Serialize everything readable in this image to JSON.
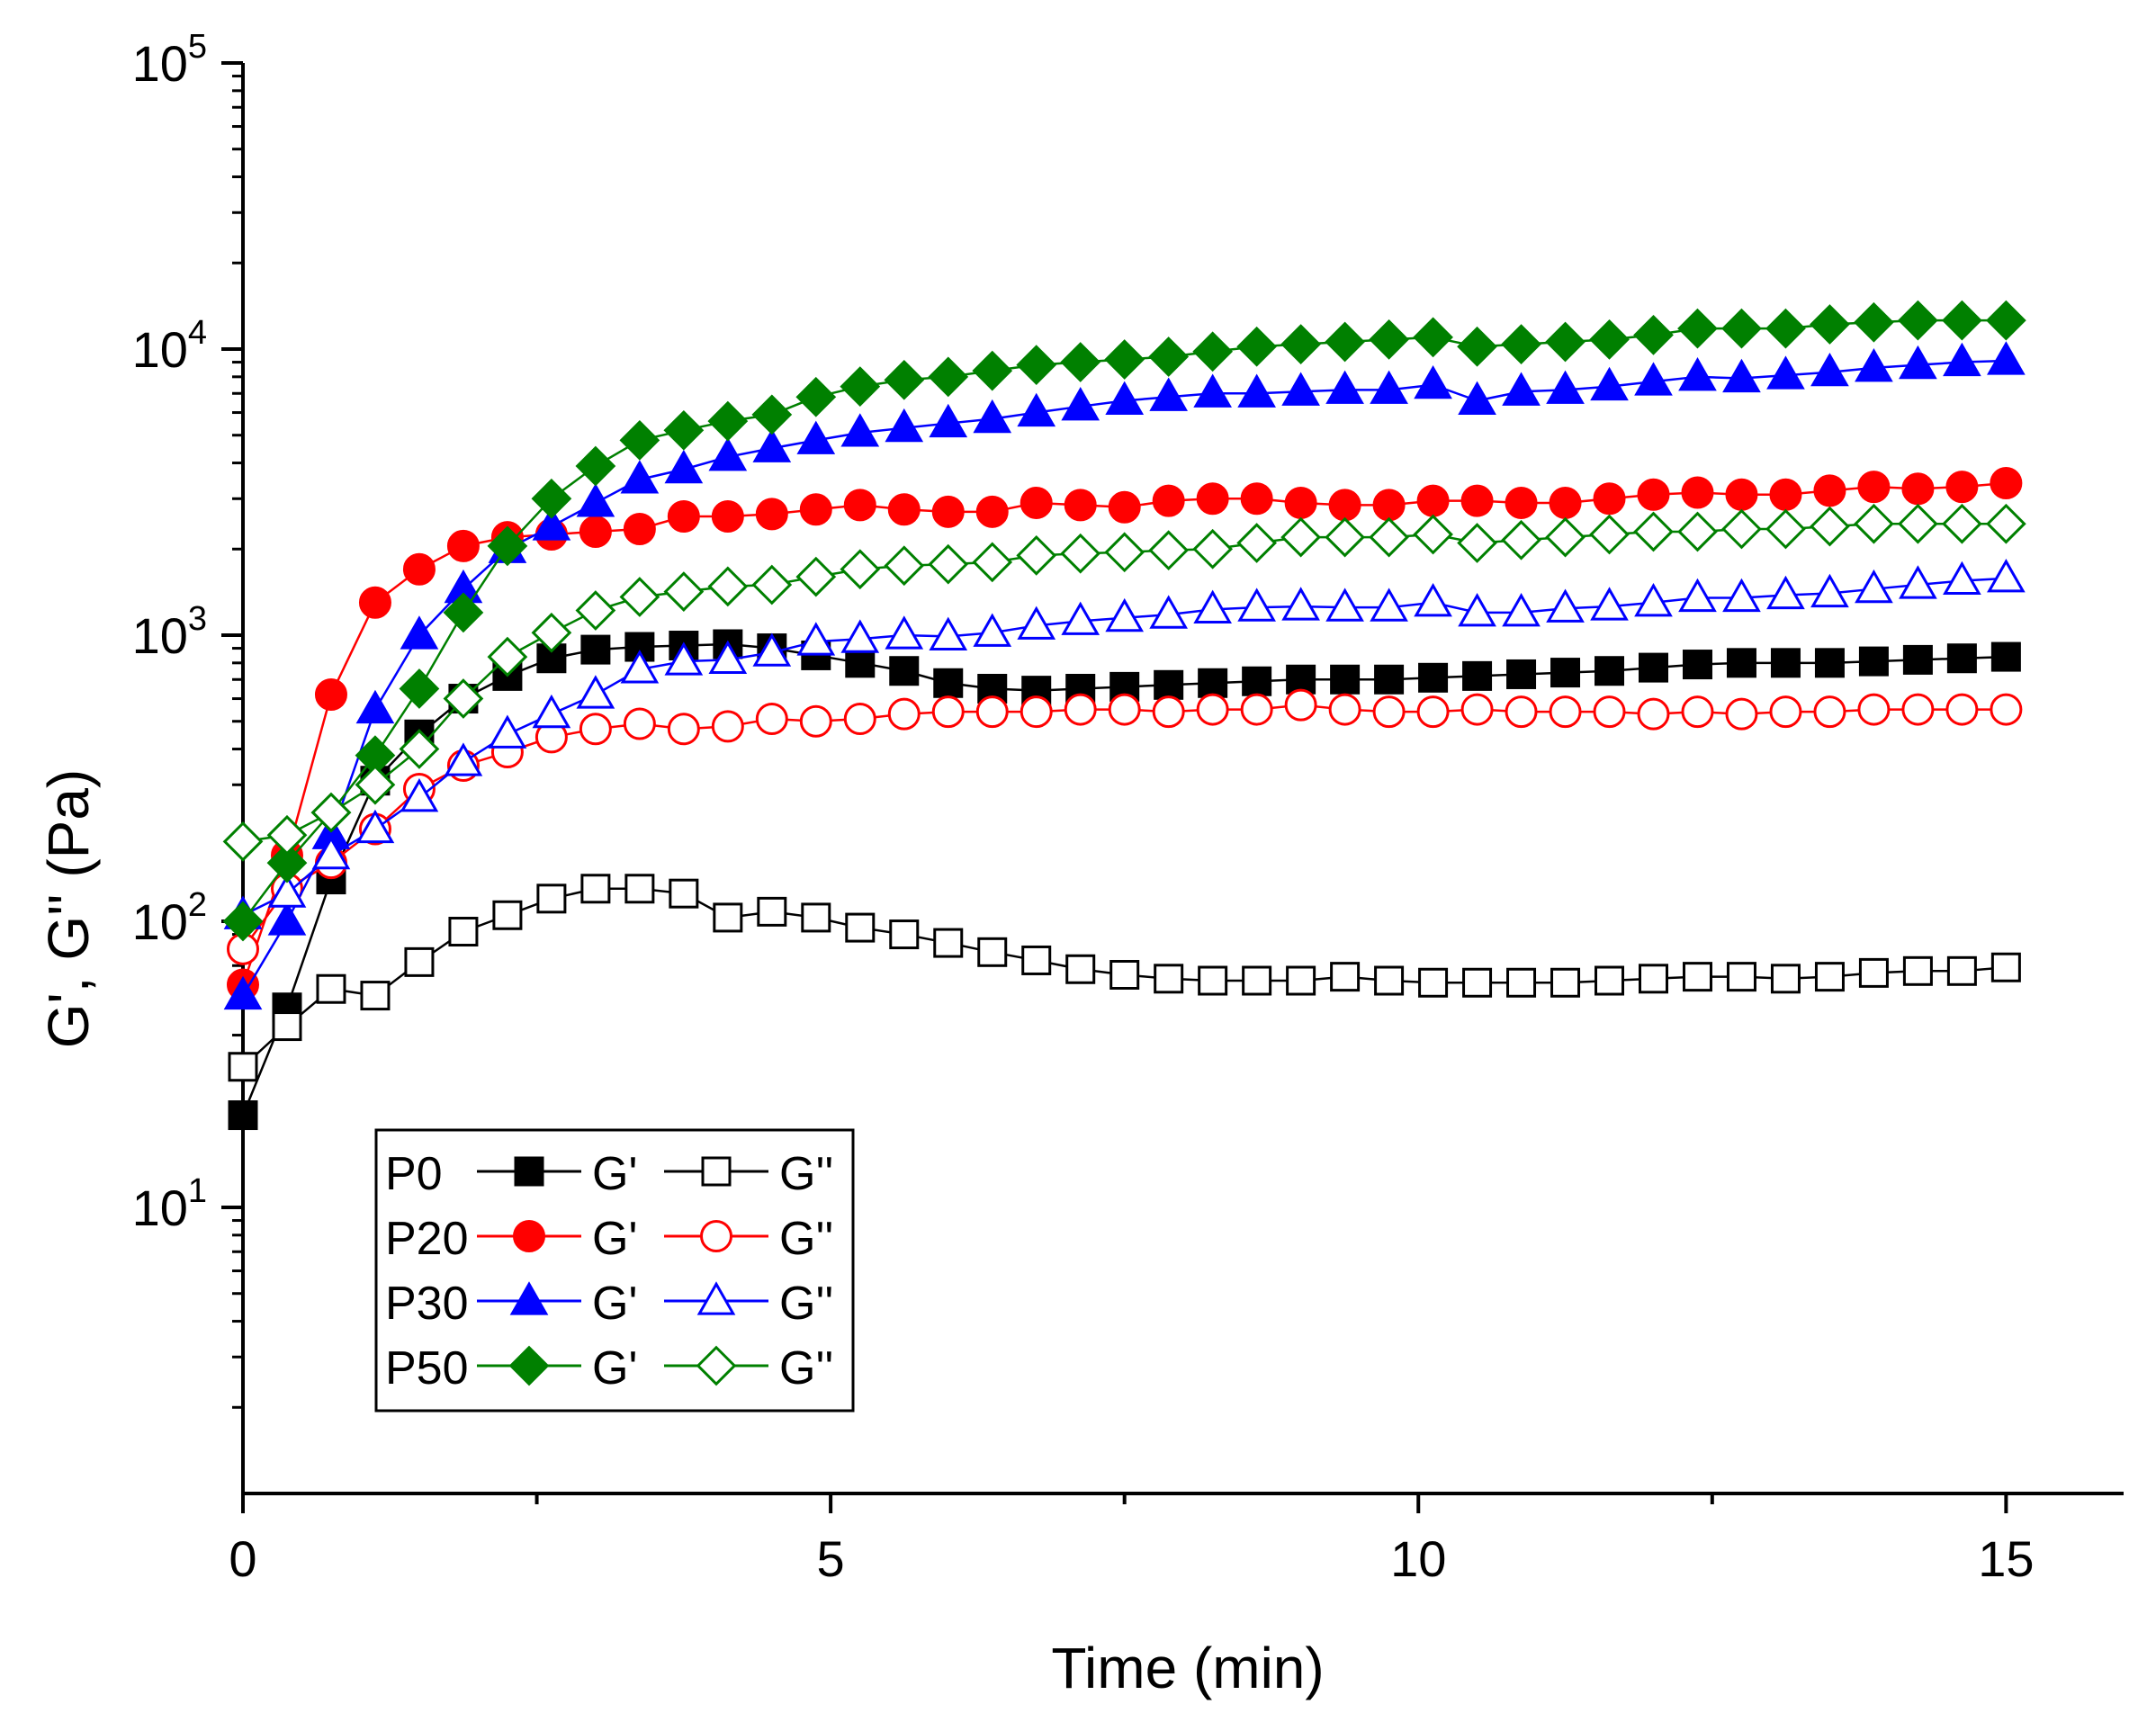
{
  "chart_data": {
    "type": "scatter",
    "title": "",
    "xlabel": "Time (min)",
    "ylabel": "G', G'' (Pa)",
    "xlim": [
      0,
      16
    ],
    "ylim": [
      1,
      100000
    ],
    "yscale": "log",
    "x_ticks": [
      {
        "value": 0,
        "label": "0"
      },
      {
        "value": 5,
        "label": "5"
      },
      {
        "value": 10,
        "label": "10"
      },
      {
        "value": 15,
        "label": "15"
      }
    ],
    "y_ticks": [
      {
        "value": 10,
        "base": "10",
        "exp": "1"
      },
      {
        "value": 100,
        "base": "10",
        "exp": "2"
      },
      {
        "value": 1000,
        "base": "10",
        "exp": "3"
      },
      {
        "value": 10000,
        "base": "10",
        "exp": "4"
      },
      {
        "value": 100000,
        "base": "10",
        "exp": "5"
      }
    ],
    "legend": {
      "position": "bottom-left",
      "rows": [
        {
          "sample": "P0",
          "gp_label": "G'",
          "gpp_label": "G''",
          "color": "#000000",
          "marker": "square"
        },
        {
          "sample": "P20",
          "gp_label": "G'",
          "gpp_label": "G''",
          "color": "#ff0000",
          "marker": "circle"
        },
        {
          "sample": "P30",
          "gp_label": "G'",
          "gpp_label": "G''",
          "color": "#0000ff",
          "marker": "triangle"
        },
        {
          "sample": "P50",
          "gp_label": "G'",
          "gpp_label": "G''",
          "color": "#008000",
          "marker": "diamond"
        }
      ]
    },
    "x": [
      0,
      0.375,
      0.75,
      1.125,
      1.5,
      1.875,
      2.25,
      2.625,
      3,
      3.375,
      3.75,
      4.125,
      4.5,
      4.875,
      5.25,
      5.625,
      6,
      6.375,
      6.75,
      7.125,
      7.5,
      7.875,
      8.25,
      8.625,
      9,
      9.375,
      9.75,
      10.125,
      10.5,
      10.875,
      11.25,
      11.625,
      12,
      12.375,
      12.75,
      13.125,
      13.5,
      13.875,
      14.25,
      14.625,
      15
    ],
    "series": [
      {
        "name": "P0 G'",
        "sample": "P0",
        "modulus": "G'",
        "color": "#000000",
        "marker": "square",
        "filled": true,
        "values": [
          21,
          50,
          140,
          310,
          450,
          600,
          720,
          830,
          890,
          910,
          920,
          930,
          900,
          850,
          800,
          750,
          680,
          650,
          640,
          650,
          660,
          670,
          680,
          690,
          700,
          700,
          700,
          710,
          720,
          730,
          740,
          750,
          770,
          790,
          800,
          800,
          800,
          810,
          820,
          830,
          840
        ]
      },
      {
        "name": "P0 G''",
        "sample": "P0",
        "modulus": "G''",
        "color": "#000000",
        "marker": "square",
        "filled": false,
        "values": [
          31,
          43,
          58,
          55,
          72,
          92,
          105,
          120,
          130,
          130,
          125,
          103,
          108,
          103,
          95,
          90,
          84,
          78,
          73,
          68,
          65,
          63,
          62,
          62,
          62,
          64,
          62,
          61,
          61,
          61,
          61,
          62,
          63,
          64,
          64,
          63,
          64,
          66,
          67,
          67,
          69
        ]
      },
      {
        "name": "P20 G'",
        "sample": "P20",
        "modulus": "G'",
        "color": "#ff0000",
        "marker": "circle",
        "filled": true,
        "values": [
          60,
          170,
          620,
          1300,
          1700,
          2050,
          2200,
          2250,
          2300,
          2350,
          2600,
          2600,
          2650,
          2750,
          2850,
          2750,
          2700,
          2700,
          2900,
          2850,
          2800,
          2950,
          3000,
          3000,
          2900,
          2850,
          2850,
          2950,
          2950,
          2900,
          2900,
          3000,
          3100,
          3150,
          3100,
          3100,
          3200,
          3300,
          3250,
          3300,
          3400
        ]
      },
      {
        "name": "P20 G''",
        "sample": "P20",
        "modulus": "G''",
        "color": "#ff0000",
        "marker": "circle",
        "filled": false,
        "values": [
          80,
          130,
          160,
          210,
          290,
          350,
          390,
          440,
          470,
          490,
          470,
          480,
          510,
          500,
          510,
          530,
          540,
          540,
          540,
          550,
          550,
          540,
          550,
          550,
          570,
          550,
          540,
          540,
          550,
          540,
          540,
          540,
          530,
          540,
          530,
          540,
          540,
          550,
          550,
          550,
          550
        ]
      },
      {
        "name": "P30 G'",
        "sample": "P30",
        "modulus": "G'",
        "color": "#0000ff",
        "marker": "triangle",
        "filled": true,
        "values": [
          55,
          100,
          200,
          550,
          1000,
          1450,
          2000,
          2400,
          2900,
          3500,
          3800,
          4200,
          4500,
          4800,
          5100,
          5300,
          5500,
          5700,
          6000,
          6300,
          6600,
          6800,
          7000,
          7000,
          7100,
          7200,
          7200,
          7500,
          6600,
          7100,
          7200,
          7400,
          7700,
          8000,
          7900,
          8100,
          8300,
          8600,
          8800,
          9000,
          9100
        ]
      },
      {
        "name": "P30 G''",
        "sample": "P30",
        "modulus": "G''",
        "color": "#0000ff",
        "marker": "triangle",
        "filled": false,
        "values": [
          105,
          125,
          170,
          210,
          270,
          360,
          450,
          530,
          620,
          760,
          810,
          820,
          870,
          950,
          970,
          1000,
          990,
          1020,
          1080,
          1120,
          1150,
          1180,
          1230,
          1250,
          1260,
          1250,
          1250,
          1300,
          1200,
          1200,
          1240,
          1260,
          1300,
          1350,
          1350,
          1380,
          1400,
          1450,
          1500,
          1550,
          1580
        ]
      },
      {
        "name": "P50 G'",
        "sample": "P50",
        "modulus": "G'",
        "color": "#008000",
        "marker": "diamond",
        "filled": true,
        "values": [
          100,
          160,
          240,
          380,
          650,
          1200,
          2050,
          3000,
          3900,
          4800,
          5200,
          5600,
          5900,
          6800,
          7400,
          7800,
          8000,
          8400,
          8800,
          9000,
          9200,
          9400,
          9800,
          10200,
          10400,
          10600,
          10800,
          11000,
          10200,
          10400,
          10600,
          10800,
          11200,
          11800,
          11800,
          11800,
          12200,
          12400,
          12600,
          12600,
          12600
        ]
      },
      {
        "name": "P50 G''",
        "sample": "P50",
        "modulus": "G''",
        "color": "#008000",
        "marker": "diamond",
        "filled": false,
        "values": [
          190,
          200,
          240,
          300,
          400,
          600,
          840,
          1020,
          1220,
          1360,
          1420,
          1480,
          1500,
          1600,
          1700,
          1750,
          1770,
          1800,
          1900,
          1930,
          1950,
          1980,
          2000,
          2100,
          2200,
          2200,
          2200,
          2250,
          2100,
          2150,
          2200,
          2250,
          2300,
          2300,
          2350,
          2350,
          2400,
          2450,
          2450,
          2450,
          2450
        ]
      }
    ]
  }
}
